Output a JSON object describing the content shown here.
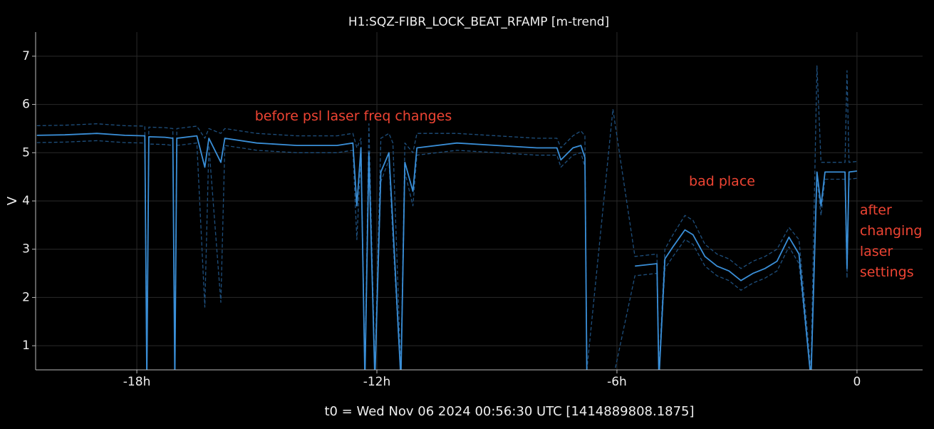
{
  "chart_data": {
    "type": "line",
    "title": "H1:SQZ-FIBR_LOCK_BEAT_RFAMP [m-trend]",
    "x_label": "t0 = Wed Nov 06 2024 00:56:30 UTC [1414889808.1875]",
    "y_label": "V",
    "grid": true,
    "xlim": [
      -20.53,
      1.64
    ],
    "ylim": [
      0.5,
      7.5
    ],
    "xticks": [
      {
        "value": -18,
        "label": "-18h"
      },
      {
        "value": -12,
        "label": "-12h"
      },
      {
        "value": -6,
        "label": "-6h"
      },
      0
    ],
    "yticks": [
      1,
      2,
      3,
      4,
      5,
      6,
      7
    ],
    "annotations": [
      {
        "text": [
          "before psl laser freq changes"
        ],
        "x": -15.05,
        "y": 5.75
      },
      {
        "text": [
          "bad place"
        ],
        "x": -4.2,
        "y": 4.4
      },
      {
        "text": [
          "after",
          "changing",
          "laser",
          "settings"
        ],
        "x": 0.07,
        "y": 3.8
      }
    ],
    "x": [
      -20.5,
      -19.8,
      -19,
      -18.3,
      -17.8,
      -17.75,
      -17.7,
      -17.3,
      -17.1,
      -17.05,
      -17,
      -16.5,
      -16.3,
      -16.2,
      -15.9,
      -15.8,
      -15,
      -14,
      -13,
      -12.6,
      -12.5,
      -12.4,
      -12.3,
      -12.2,
      -12.05,
      -11.9,
      -11.7,
      -11.6,
      -11.4,
      -11.3,
      -11.1,
      -11,
      -10,
      -9,
      -8,
      -7.5,
      -7.4,
      -7.1,
      -6.9,
      -6.8,
      -6.75,
      -6.1,
      -5.55,
      -5,
      -4.95,
      -4.8,
      -4.6,
      -4.3,
      -4.1,
      -3.8,
      -3.5,
      -3.2,
      -2.9,
      -2.6,
      -2.3,
      -2,
      -1.7,
      -1.45,
      -1.15,
      -1,
      -0.9,
      -0.8,
      -0.3,
      -0.25,
      -0.2,
      0
    ],
    "series": [
      {
        "color": "#1e4f7d",
        "dashed": true,
        "values": [
          5.21,
          5.22,
          5.25,
          5.21,
          5.2,
          0.3,
          5.18,
          5.17,
          5.15,
          0.3,
          5.15,
          5.2,
          1.8,
          5.15,
          1.9,
          5.15,
          5.05,
          5,
          5,
          5.05,
          3.2,
          4.95,
          0.3,
          4.85,
          0.3,
          4.4,
          4.85,
          3.2,
          0.3,
          4.6,
          3.9,
          4.95,
          5.05,
          5,
          4.95,
          4.95,
          4.7,
          4.95,
          5,
          4.7,
          0.3,
          0.3,
          2.45,
          2.5,
          0.3,
          2.6,
          2.85,
          3.2,
          3.1,
          2.65,
          2.45,
          2.35,
          2.15,
          2.3,
          2.4,
          2.55,
          3.05,
          2.7,
          0.3,
          4.45,
          3.7,
          4.45,
          4.45,
          2.4,
          4.45,
          4.47
        ]
      },
      {
        "color": "#1e4f7d",
        "dashed": true,
        "values": [
          5.56,
          5.57,
          5.6,
          5.56,
          5.55,
          0.5,
          5.53,
          5.52,
          5.5,
          0.5,
          5.5,
          5.55,
          5.3,
          5.5,
          5.4,
          5.5,
          5.4,
          5.35,
          5.35,
          5.4,
          5.1,
          5.3,
          0.5,
          5.6,
          0.5,
          5.3,
          5.4,
          5.2,
          0.5,
          5.2,
          5.0,
          5.4,
          5.4,
          5.35,
          5.3,
          5.3,
          5.1,
          5.35,
          5.45,
          5.35,
          0.5,
          5.9,
          2.85,
          2.9,
          0.5,
          3.0,
          3.3,
          3.7,
          3.6,
          3.1,
          2.9,
          2.8,
          2.6,
          2.75,
          2.85,
          3.0,
          3.45,
          3.2,
          0.5,
          6.8,
          4.8,
          4.8,
          4.8,
          6.7,
          4.8,
          4.82
        ]
      },
      {
        "color": "#3a8fd8",
        "dashed": false,
        "values": [
          5.36,
          5.37,
          5.4,
          5.36,
          5.35,
          0.3,
          5.33,
          5.32,
          5.3,
          0.3,
          5.3,
          5.35,
          4.7,
          5.3,
          4.8,
          5.3,
          5.2,
          5.15,
          5.15,
          5.2,
          3.9,
          5.1,
          0.3,
          5,
          0.3,
          4.6,
          5,
          3.5,
          0.3,
          4.8,
          4.2,
          5.1,
          5.2,
          5.15,
          5.1,
          5.1,
          4.85,
          5.1,
          5.15,
          4.9,
          0.3,
          null,
          2.65,
          2.7,
          0.3,
          2.8,
          3.05,
          3.4,
          3.3,
          2.85,
          2.65,
          2.55,
          2.35,
          2.5,
          2.6,
          2.75,
          3.25,
          2.9,
          0.3,
          4.6,
          3.9,
          4.6,
          4.6,
          2.6,
          4.6,
          4.62
        ]
      }
    ]
  }
}
